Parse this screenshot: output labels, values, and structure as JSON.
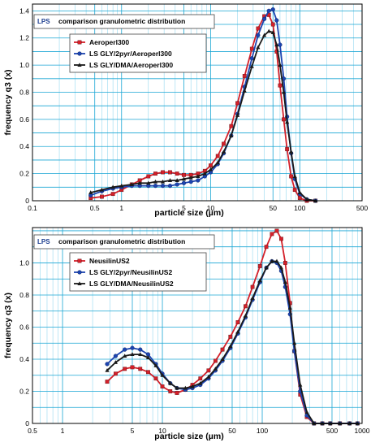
{
  "chart_data": [
    {
      "type": "line",
      "badge": "LPS",
      "title": "comparison granulometric distribution",
      "xlabel": "particle size (µm)",
      "ylabel": "frequency q3 (x)",
      "xscale": "log",
      "xlim": [
        0.1,
        500
      ],
      "ylim": [
        0,
        1.45
      ],
      "xticks": [
        {
          "v": 0.1,
          "label": "0.1"
        },
        {
          "v": 0.5,
          "label": "0.5"
        },
        {
          "v": 1,
          "label": "1"
        },
        {
          "v": 5,
          "label": "5"
        },
        {
          "v": 10,
          "label": "10"
        },
        {
          "v": 50,
          "label": "50"
        },
        {
          "v": 100,
          "label": "100"
        },
        {
          "v": 500,
          "label": "500"
        }
      ],
      "yticks": [
        {
          "v": 0,
          "label": "0"
        },
        {
          "v": 0.2,
          "label": "0.2"
        },
        {
          "v": 0.4,
          "label": "0.4"
        },
        {
          "v": 0.6,
          "label": "0.6"
        },
        {
          "v": 0.8,
          "label": "0.8"
        },
        {
          "v": 1.0,
          "label": "1.0"
        },
        {
          "v": 1.2,
          "label": "1.2"
        },
        {
          "v": 1.4,
          "label": "1.4"
        }
      ],
      "grid": true,
      "legend_position": "top-left",
      "series": [
        {
          "name": "Aeroperl300",
          "color": "#d4202a",
          "marker": "square",
          "x": [
            0.45,
            0.6,
            0.8,
            1.0,
            1.3,
            1.6,
            2.0,
            2.4,
            2.9,
            3.5,
            4.2,
            5.0,
            6.0,
            7.2,
            8.6,
            10,
            12,
            14,
            17,
            20,
            24,
            29,
            34,
            40,
            45,
            50,
            55,
            60,
            66,
            72,
            80,
            88,
            100,
            120,
            150
          ],
          "y": [
            0.02,
            0.03,
            0.05,
            0.08,
            0.12,
            0.15,
            0.18,
            0.2,
            0.21,
            0.21,
            0.2,
            0.19,
            0.19,
            0.2,
            0.22,
            0.26,
            0.33,
            0.42,
            0.55,
            0.72,
            0.92,
            1.12,
            1.27,
            1.36,
            1.37,
            1.3,
            1.1,
            0.85,
            0.6,
            0.38,
            0.18,
            0.08,
            0.02,
            0.0,
            0.0
          ]
        },
        {
          "name": "LS GLY/2pyr/Aeroperl300",
          "color": "#1c44b0",
          "marker": "circle",
          "x": [
            0.45,
            0.6,
            0.8,
            1.0,
            1.3,
            1.6,
            2.0,
            2.4,
            2.9,
            3.5,
            4.2,
            5.0,
            6.0,
            7.2,
            8.6,
            10,
            12,
            14,
            17,
            20,
            24,
            29,
            34,
            40,
            45,
            50,
            55,
            60,
            66,
            72,
            80,
            88,
            100,
            120,
            150
          ],
          "y": [
            0.04,
            0.07,
            0.09,
            0.1,
            0.11,
            0.11,
            0.11,
            0.11,
            0.11,
            0.11,
            0.12,
            0.13,
            0.14,
            0.15,
            0.18,
            0.21,
            0.27,
            0.35,
            0.48,
            0.64,
            0.84,
            1.05,
            1.22,
            1.34,
            1.4,
            1.41,
            1.33,
            1.15,
            0.9,
            0.62,
            0.35,
            0.16,
            0.05,
            0.01,
            0.0
          ]
        },
        {
          "name": "LS GLY/DMA/Aeroperl300",
          "color": "#1a1a1a",
          "marker": "triangle",
          "x": [
            0.45,
            0.6,
            0.8,
            1.0,
            1.3,
            1.6,
            2.0,
            2.4,
            2.9,
            3.5,
            4.2,
            5.0,
            6.0,
            7.2,
            8.6,
            10,
            12,
            14,
            17,
            20,
            24,
            29,
            34,
            40,
            45,
            50,
            55,
            60,
            66,
            72,
            80,
            88,
            100,
            120,
            150
          ],
          "y": [
            0.06,
            0.08,
            0.1,
            0.11,
            0.12,
            0.13,
            0.13,
            0.14,
            0.14,
            0.15,
            0.15,
            0.16,
            0.17,
            0.18,
            0.2,
            0.23,
            0.28,
            0.36,
            0.48,
            0.63,
            0.81,
            0.99,
            1.13,
            1.22,
            1.25,
            1.24,
            1.15,
            1.0,
            0.8,
            0.58,
            0.36,
            0.18,
            0.06,
            0.01,
            0.0
          ]
        }
      ]
    },
    {
      "type": "line",
      "badge": "LPS",
      "title": "comparison granulometric distribution",
      "xlabel": "particle size (µm)",
      "ylabel": "frequency q3 (x)",
      "xscale": "log",
      "xlim": [
        0.5,
        1000
      ],
      "ylim": [
        0,
        1.22
      ],
      "xticks": [
        {
          "v": 0.5,
          "label": "0.5"
        },
        {
          "v": 1,
          "label": "1"
        },
        {
          "v": 5,
          "label": "5"
        },
        {
          "v": 10,
          "label": "10"
        },
        {
          "v": 50,
          "label": "50"
        },
        {
          "v": 100,
          "label": "100"
        },
        {
          "v": 500,
          "label": "500"
        },
        {
          "v": 1000,
          "label": "1000"
        }
      ],
      "yticks": [
        {
          "v": 0,
          "label": "0"
        },
        {
          "v": 0.2,
          "label": "0.2"
        },
        {
          "v": 0.4,
          "label": "0.4"
        },
        {
          "v": 0.6,
          "label": "0.6"
        },
        {
          "v": 0.8,
          "label": "0.8"
        },
        {
          "v": 1.0,
          "label": "1.0"
        }
      ],
      "grid": true,
      "legend_position": "top-left",
      "series": [
        {
          "name": "NeusilinUS2",
          "color": "#d4202a",
          "marker": "square",
          "x": [
            2.8,
            3.4,
            4.2,
            5.0,
            6.0,
            7.2,
            8.6,
            10,
            12,
            14,
            17,
            20,
            24,
            29,
            34,
            40,
            48,
            57,
            68,
            80,
            95,
            110,
            125,
            140,
            155,
            170,
            190,
            210,
            240,
            280,
            330,
            400,
            480,
            600,
            750,
            900
          ],
          "y": [
            0.26,
            0.31,
            0.34,
            0.35,
            0.34,
            0.32,
            0.28,
            0.23,
            0.2,
            0.19,
            0.21,
            0.24,
            0.28,
            0.33,
            0.39,
            0.46,
            0.54,
            0.63,
            0.73,
            0.85,
            0.98,
            1.1,
            1.18,
            1.2,
            1.15,
            1.0,
            0.75,
            0.45,
            0.18,
            0.04,
            0.0,
            0.0,
            0.0,
            0.0,
            0.0,
            0.0
          ]
        },
        {
          "name": "LS GLY/2pyr/NeusilinUS2",
          "color": "#1c44b0",
          "marker": "circle",
          "x": [
            2.8,
            3.4,
            4.2,
            5.0,
            6.0,
            7.2,
            8.6,
            10,
            12,
            14,
            17,
            20,
            24,
            29,
            34,
            40,
            48,
            57,
            68,
            80,
            95,
            110,
            125,
            140,
            155,
            170,
            190,
            210,
            240,
            280,
            330,
            400,
            480,
            600,
            750,
            900
          ],
          "y": [
            0.37,
            0.42,
            0.46,
            0.47,
            0.46,
            0.43,
            0.37,
            0.31,
            0.25,
            0.22,
            0.21,
            0.22,
            0.24,
            0.28,
            0.33,
            0.39,
            0.47,
            0.56,
            0.66,
            0.77,
            0.88,
            0.97,
            1.01,
            1.0,
            0.95,
            0.85,
            0.68,
            0.45,
            0.2,
            0.05,
            0.0,
            0.0,
            0.0,
            0.0,
            0.0,
            0.0
          ]
        },
        {
          "name": "LS GLY/DMA/NeusilinUS2",
          "color": "#1a1a1a",
          "marker": "triangle",
          "x": [
            2.8,
            3.4,
            4.2,
            5.0,
            6.0,
            7.2,
            8.6,
            10,
            12,
            14,
            17,
            20,
            24,
            29,
            34,
            40,
            48,
            57,
            68,
            80,
            95,
            110,
            125,
            140,
            155,
            170,
            190,
            210,
            240,
            280,
            330,
            400,
            480,
            600,
            750,
            900
          ],
          "y": [
            0.33,
            0.38,
            0.42,
            0.43,
            0.43,
            0.41,
            0.36,
            0.3,
            0.25,
            0.22,
            0.22,
            0.23,
            0.25,
            0.29,
            0.34,
            0.4,
            0.48,
            0.57,
            0.67,
            0.78,
            0.89,
            0.97,
            1.01,
            1.01,
            0.97,
            0.88,
            0.72,
            0.5,
            0.24,
            0.07,
            0.0,
            0.0,
            0.0,
            0.0,
            0.0,
            0.0
          ]
        }
      ]
    }
  ]
}
